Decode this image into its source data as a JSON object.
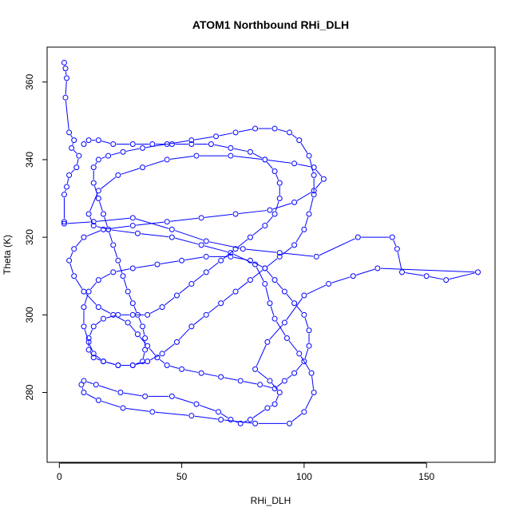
{
  "chart_data": {
    "type": "line",
    "title": "ATOM1 Northbound RHi_DLH",
    "xlabel": "RHi_DLH",
    "ylabel": "Theta (K)",
    "xlim": [
      -5,
      178
    ],
    "ylim": [
      262,
      369
    ],
    "x_ticks": [
      0,
      50,
      100,
      150
    ],
    "y_ticks": [
      280,
      300,
      320,
      340,
      360
    ],
    "grid": false,
    "legend": "none",
    "style": {
      "line_color": "#0000ff",
      "marker": "open-circle"
    },
    "series": [
      {
        "name": "",
        "points": [
          [
            2,
            365
          ],
          [
            2.5,
            363.5
          ],
          [
            3,
            361
          ],
          [
            2.5,
            356
          ],
          [
            4,
            347
          ],
          [
            6,
            345
          ],
          [
            5,
            343
          ],
          [
            8,
            341
          ],
          [
            7,
            338
          ],
          [
            4,
            336
          ],
          [
            3,
            333
          ],
          [
            2,
            331
          ],
          [
            2,
            324
          ],
          [
            2,
            323.5
          ],
          [
            14,
            324
          ],
          [
            30,
            325
          ],
          [
            46,
            322
          ],
          [
            60,
            319
          ],
          [
            75,
            317
          ],
          [
            90,
            316
          ],
          [
            105,
            315
          ],
          [
            122,
            320
          ],
          [
            136,
            320
          ],
          [
            138,
            317
          ],
          [
            140,
            311
          ],
          [
            150,
            310
          ],
          [
            158,
            309
          ],
          [
            171,
            311
          ],
          [
            130,
            312
          ],
          [
            120,
            310
          ],
          [
            110,
            308
          ],
          [
            100,
            305
          ],
          [
            92,
            298
          ],
          [
            85,
            293
          ],
          [
            80,
            286
          ],
          [
            86,
            283
          ],
          [
            90,
            280
          ],
          [
            88,
            277
          ],
          [
            85,
            276
          ],
          [
            78,
            273
          ],
          [
            74,
            272
          ],
          [
            70,
            273
          ],
          [
            65,
            275
          ],
          [
            56,
            277
          ],
          [
            46,
            279
          ],
          [
            35,
            279
          ],
          [
            25,
            280
          ],
          [
            15,
            282
          ],
          [
            10,
            283
          ],
          [
            9,
            282
          ],
          [
            10,
            280
          ],
          [
            16,
            278
          ],
          [
            26,
            276
          ],
          [
            38,
            275
          ],
          [
            54,
            274
          ],
          [
            66,
            273
          ],
          [
            80,
            272
          ],
          [
            94,
            272
          ],
          [
            100,
            275
          ],
          [
            104,
            280
          ],
          [
            103,
            285
          ],
          [
            98,
            290
          ],
          [
            93,
            294
          ],
          [
            88,
            299
          ],
          [
            86,
            303
          ],
          [
            84,
            308
          ],
          [
            80,
            313
          ],
          [
            70,
            316
          ],
          [
            58,
            318
          ],
          [
            46,
            320
          ],
          [
            32,
            321
          ],
          [
            20,
            322
          ],
          [
            14,
            323
          ],
          [
            12,
            326
          ],
          [
            16,
            332
          ],
          [
            24,
            336
          ],
          [
            34,
            338
          ],
          [
            44,
            340
          ],
          [
            56,
            341
          ],
          [
            70,
            341
          ],
          [
            84,
            340
          ],
          [
            96,
            339
          ],
          [
            104,
            338
          ],
          [
            108,
            335
          ],
          [
            104,
            332
          ],
          [
            96,
            329
          ],
          [
            86,
            327
          ],
          [
            72,
            326
          ],
          [
            58,
            325
          ],
          [
            44,
            324
          ],
          [
            30,
            323
          ],
          [
            18,
            322
          ],
          [
            10,
            320
          ],
          [
            6,
            317
          ],
          [
            4,
            314
          ],
          [
            6,
            310
          ],
          [
            10,
            306
          ],
          [
            16,
            302
          ],
          [
            22,
            300
          ],
          [
            28,
            298
          ],
          [
            32,
            295
          ],
          [
            36,
            292
          ],
          [
            40,
            289
          ],
          [
            44,
            287
          ],
          [
            50,
            286
          ],
          [
            58,
            285
          ],
          [
            66,
            284
          ],
          [
            74,
            283
          ],
          [
            82,
            282
          ],
          [
            88,
            281
          ],
          [
            92,
            283
          ],
          [
            96,
            285
          ],
          [
            100,
            288
          ],
          [
            102,
            292
          ],
          [
            102,
            296
          ],
          [
            100,
            300
          ],
          [
            96,
            303
          ],
          [
            92,
            306
          ],
          [
            88,
            309
          ],
          [
            84,
            312
          ],
          [
            78,
            314
          ],
          [
            70,
            315
          ],
          [
            60,
            315
          ],
          [
            50,
            314
          ],
          [
            40,
            313
          ],
          [
            30,
            312
          ],
          [
            22,
            311
          ],
          [
            16,
            309
          ],
          [
            12,
            306
          ],
          [
            10,
            302
          ],
          [
            10,
            297
          ],
          [
            12,
            293
          ],
          [
            14,
            290
          ],
          [
            18,
            288
          ],
          [
            24,
            287
          ],
          [
            30,
            287
          ],
          [
            36,
            288
          ],
          [
            42,
            290
          ],
          [
            48,
            293
          ],
          [
            54,
            297
          ],
          [
            60,
            300
          ],
          [
            66,
            303
          ],
          [
            72,
            306
          ],
          [
            78,
            309
          ],
          [
            84,
            312
          ],
          [
            90,
            315
          ],
          [
            96,
            318
          ],
          [
            100,
            322
          ],
          [
            102,
            326
          ],
          [
            104,
            331
          ],
          [
            104,
            336
          ],
          [
            102,
            341
          ],
          [
            98,
            345
          ],
          [
            94,
            347
          ],
          [
            88,
            348
          ],
          [
            80,
            348
          ],
          [
            72,
            347
          ],
          [
            64,
            346
          ],
          [
            54,
            345
          ],
          [
            44,
            344
          ],
          [
            34,
            343
          ],
          [
            26,
            342
          ],
          [
            20,
            341
          ],
          [
            16,
            340
          ],
          [
            14,
            338
          ],
          [
            14,
            334
          ],
          [
            16,
            330
          ],
          [
            18,
            326
          ],
          [
            20,
            322
          ],
          [
            22,
            318
          ],
          [
            24,
            314
          ],
          [
            26,
            310
          ],
          [
            28,
            306
          ],
          [
            30,
            303
          ],
          [
            32,
            300
          ],
          [
            34,
            297
          ],
          [
            35,
            294
          ],
          [
            35,
            291
          ],
          [
            34,
            288
          ],
          [
            30,
            287
          ],
          [
            24,
            287
          ],
          [
            18,
            288
          ],
          [
            14,
            289
          ],
          [
            12,
            291
          ],
          [
            12,
            294
          ],
          [
            14,
            297
          ],
          [
            18,
            299
          ],
          [
            24,
            300
          ],
          [
            30,
            300
          ],
          [
            36,
            300
          ],
          [
            42,
            302
          ],
          [
            48,
            305
          ],
          [
            54,
            308
          ],
          [
            60,
            311
          ],
          [
            66,
            314
          ],
          [
            72,
            317
          ],
          [
            78,
            320
          ],
          [
            84,
            323
          ],
          [
            88,
            326
          ],
          [
            90,
            330
          ],
          [
            90,
            334
          ],
          [
            88,
            337
          ],
          [
            84,
            340
          ],
          [
            78,
            342
          ],
          [
            70,
            343
          ],
          [
            62,
            344
          ],
          [
            54,
            344
          ],
          [
            46,
            344
          ],
          [
            38,
            344
          ],
          [
            30,
            344
          ],
          [
            22,
            344
          ],
          [
            16,
            345
          ],
          [
            12,
            345
          ],
          [
            10,
            344
          ]
        ]
      }
    ]
  }
}
